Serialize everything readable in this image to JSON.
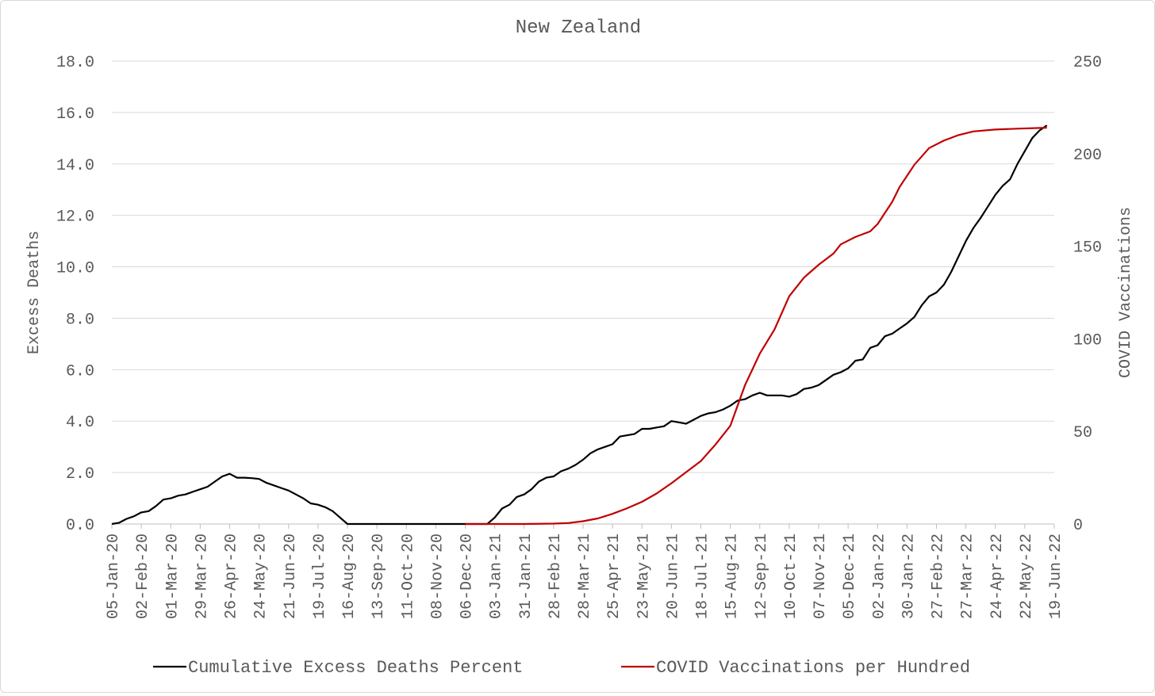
{
  "chart_data": {
    "type": "line",
    "title": "New Zealand",
    "ylabel": "Excess Deaths",
    "y2label": "COVID Vaccinations",
    "ylim": [
      0,
      18
    ],
    "y2lim": [
      0,
      250
    ],
    "yticks": [
      "0.0",
      "2.0",
      "4.0",
      "6.0",
      "8.0",
      "10.0",
      "12.0",
      "14.0",
      "16.0",
      "18.0"
    ],
    "y2ticks": [
      "0",
      "50",
      "100",
      "150",
      "200",
      "250"
    ],
    "x_tick_labels": [
      "05-Jan-20",
      "02-Feb-20",
      "01-Mar-20",
      "29-Mar-20",
      "26-Apr-20",
      "24-May-20",
      "21-Jun-20",
      "19-Jul-20",
      "16-Aug-20",
      "13-Sep-20",
      "11-Oct-20",
      "08-Nov-20",
      "06-Dec-20",
      "03-Jan-21",
      "31-Jan-21",
      "28-Feb-21",
      "28-Mar-21",
      "25-Apr-21",
      "23-May-21",
      "20-Jun-21",
      "18-Jul-21",
      "15-Aug-21",
      "12-Sep-21",
      "10-Oct-21",
      "07-Nov-21",
      "05-Dec-21",
      "02-Jan-22",
      "30-Jan-22",
      "27-Feb-22",
      "27-Mar-22",
      "24-Apr-22",
      "22-May-22",
      "19-Jun-22"
    ],
    "x_period_weeks": 128,
    "grid": true,
    "legend_position": "bottom",
    "series": [
      {
        "name": "Cumulative Excess Deaths Percent",
        "axis": "left",
        "color": "#000000",
        "points": [
          [
            0,
            0.0
          ],
          [
            1,
            0.05
          ],
          [
            2,
            0.2
          ],
          [
            3,
            0.3
          ],
          [
            4,
            0.45
          ],
          [
            5,
            0.5
          ],
          [
            6,
            0.7
          ],
          [
            7,
            0.95
          ],
          [
            8,
            1.0
          ],
          [
            9,
            1.1
          ],
          [
            10,
            1.15
          ],
          [
            11,
            1.25
          ],
          [
            12,
            1.35
          ],
          [
            13,
            1.45
          ],
          [
            14,
            1.65
          ],
          [
            15,
            1.85
          ],
          [
            16,
            1.95
          ],
          [
            17,
            1.8
          ],
          [
            18,
            1.8
          ],
          [
            19,
            1.78
          ],
          [
            20,
            1.75
          ],
          [
            21,
            1.6
          ],
          [
            22,
            1.5
          ],
          [
            23,
            1.4
          ],
          [
            24,
            1.3
          ],
          [
            25,
            1.15
          ],
          [
            26,
            1.0
          ],
          [
            27,
            0.8
          ],
          [
            28,
            0.75
          ],
          [
            29,
            0.65
          ],
          [
            30,
            0.5
          ],
          [
            31,
            0.25
          ],
          [
            32,
            0.0
          ],
          [
            51,
            0.0
          ],
          [
            52,
            0.25
          ],
          [
            53,
            0.6
          ],
          [
            54,
            0.75
          ],
          [
            55,
            1.05
          ],
          [
            56,
            1.15
          ],
          [
            57,
            1.35
          ],
          [
            58,
            1.65
          ],
          [
            59,
            1.8
          ],
          [
            60,
            1.85
          ],
          [
            61,
            2.05
          ],
          [
            62,
            2.15
          ],
          [
            63,
            2.3
          ],
          [
            64,
            2.5
          ],
          [
            65,
            2.75
          ],
          [
            66,
            2.9
          ],
          [
            67,
            3.0
          ],
          [
            68,
            3.1
          ],
          [
            69,
            3.4
          ],
          [
            70,
            3.45
          ],
          [
            71,
            3.5
          ],
          [
            72,
            3.7
          ],
          [
            73,
            3.7
          ],
          [
            74,
            3.75
          ],
          [
            75,
            3.8
          ],
          [
            76,
            4.0
          ],
          [
            77,
            3.95
          ],
          [
            78,
            3.9
          ],
          [
            79,
            4.05
          ],
          [
            80,
            4.2
          ],
          [
            81,
            4.3
          ],
          [
            82,
            4.35
          ],
          [
            83,
            4.45
          ],
          [
            84,
            4.6
          ],
          [
            85,
            4.8
          ],
          [
            86,
            4.85
          ],
          [
            87,
            5.0
          ],
          [
            88,
            5.1
          ],
          [
            89,
            5.0
          ],
          [
            90,
            5.0
          ],
          [
            91,
            5.0
          ],
          [
            92,
            4.95
          ],
          [
            93,
            5.05
          ],
          [
            94,
            5.25
          ],
          [
            95,
            5.3
          ],
          [
            96,
            5.4
          ],
          [
            97,
            5.6
          ],
          [
            98,
            5.8
          ],
          [
            99,
            5.9
          ],
          [
            100,
            6.05
          ],
          [
            101,
            6.35
          ],
          [
            102,
            6.4
          ],
          [
            103,
            6.85
          ],
          [
            104,
            6.95
          ],
          [
            105,
            7.3
          ],
          [
            106,
            7.4
          ],
          [
            107,
            7.6
          ],
          [
            108,
            7.8
          ],
          [
            109,
            8.05
          ],
          [
            110,
            8.5
          ],
          [
            111,
            8.85
          ],
          [
            112,
            9.0
          ],
          [
            113,
            9.3
          ],
          [
            114,
            9.8
          ],
          [
            115,
            10.4
          ],
          [
            116,
            11.0
          ],
          [
            117,
            11.5
          ],
          [
            118,
            11.9
          ],
          [
            119,
            12.35
          ],
          [
            120,
            12.8
          ],
          [
            121,
            13.15
          ],
          [
            122,
            13.4
          ],
          [
            123,
            14.0
          ],
          [
            124,
            14.5
          ],
          [
            125,
            15.0
          ],
          [
            126,
            15.3
          ],
          [
            127,
            15.5
          ]
        ]
      },
      {
        "name": "COVID Vaccinations per Hundred",
        "axis": "right",
        "color": "#c00000",
        "points": [
          [
            48,
            0
          ],
          [
            52,
            0
          ],
          [
            56,
            0
          ],
          [
            60,
            0.2
          ],
          [
            62,
            0.5
          ],
          [
            64,
            1.5
          ],
          [
            66,
            3
          ],
          [
            68,
            5.5
          ],
          [
            70,
            8.5
          ],
          [
            72,
            12
          ],
          [
            74,
            16.5
          ],
          [
            76,
            22
          ],
          [
            78,
            28
          ],
          [
            80,
            34
          ],
          [
            82,
            43
          ],
          [
            84,
            53
          ],
          [
            86,
            75
          ],
          [
            88,
            92
          ],
          [
            90,
            105
          ],
          [
            92,
            123
          ],
          [
            94,
            133
          ],
          [
            96,
            140
          ],
          [
            98,
            146
          ],
          [
            99,
            151
          ],
          [
            101,
            155
          ],
          [
            103,
            158
          ],
          [
            104,
            162
          ],
          [
            106,
            174
          ],
          [
            107,
            182
          ],
          [
            109,
            194
          ],
          [
            111,
            203
          ],
          [
            113,
            207
          ],
          [
            115,
            210
          ],
          [
            117,
            212
          ],
          [
            120,
            213
          ],
          [
            123,
            213.5
          ],
          [
            127,
            214
          ]
        ]
      }
    ]
  }
}
